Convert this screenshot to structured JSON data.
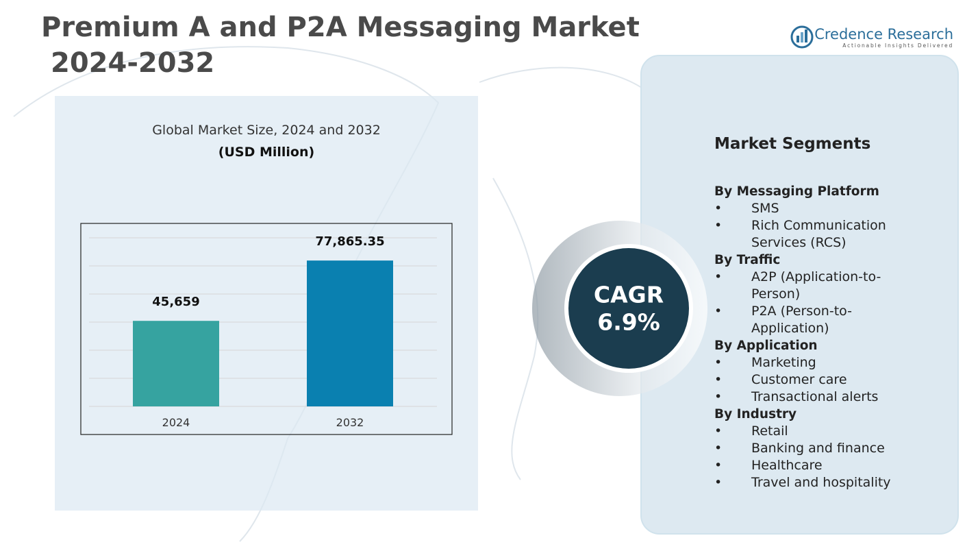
{
  "header": {
    "title_lines": [
      "Premium A and P2A Messaging Market",
      "2024-2032"
    ]
  },
  "brand": {
    "name": "Credence Research",
    "tagline": "Actionable Insights Delivered"
  },
  "chart_data": {
    "type": "bar",
    "title": "Global Market Size, 2024 and 2032",
    "subtitle": "(USD Million)",
    "categories": [
      "2024",
      "2032"
    ],
    "values": [
      45659,
      77865.35
    ],
    "value_labels": [
      "45,659",
      "77,865.35"
    ],
    "colors": [
      "#36a3a0",
      "#0a80b0"
    ],
    "ylim": [
      0,
      90000
    ],
    "yticks": [
      0,
      15000,
      30000,
      45000,
      60000,
      75000,
      90000
    ],
    "grid": true
  },
  "cagr": {
    "label": "CAGR",
    "value": "6.9%"
  },
  "segments": {
    "title": "Market Segments",
    "groups": [
      {
        "heading": "By Messaging Platform",
        "items": [
          "SMS",
          "Rich Communication Services (RCS)"
        ]
      },
      {
        "heading": "By Traffic",
        "items": [
          "A2P (Application-to-Person)",
          "P2A (Person-to-Application)"
        ]
      },
      {
        "heading": "By Application",
        "items": [
          "Marketing",
          "Customer care",
          "Transactional alerts"
        ]
      },
      {
        "heading": "By Industry",
        "items": [
          "Retail",
          "Banking and finance",
          "Healthcare",
          "Travel and hospitality"
        ]
      }
    ]
  }
}
